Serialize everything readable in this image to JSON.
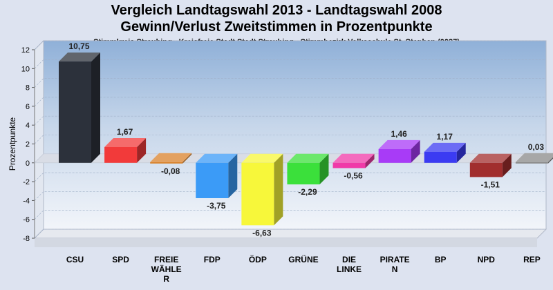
{
  "chart_data": {
    "type": "bar",
    "title": "Vergleich Landtagswahl 2013 - Landtagswahl 2008",
    "subtitle": "Gewinn/Verlust Zweitstimmen in Prozentpunkte",
    "subsubtitle": "Stimmkreis Straubing - Kreisfreie Stadt Stadt Straubing - Stimmbezirk Volksschule St. Stephan (0037)",
    "ylabel": "Prozentpunkte",
    "ylim": [
      -8,
      12
    ],
    "yticks": [
      "12",
      "10",
      "8",
      "6",
      "4",
      "2",
      "0",
      "-2",
      "-4",
      "-6",
      "-8"
    ],
    "grid": true,
    "categories": [
      "CSU",
      "SPD",
      "FREIE WÄHLER",
      "FDP",
      "ÖDP",
      "GRÜNE",
      "DIE LINKE",
      "PIRATEN",
      "BP",
      "NPD",
      "REP"
    ],
    "category_labels": [
      [
        "CSU"
      ],
      [
        "SPD"
      ],
      [
        "FREIE",
        "WÄHLE",
        "R"
      ],
      [
        "FDP"
      ],
      [
        "ÖDP"
      ],
      [
        "GRÜNE"
      ],
      [
        "DIE",
        "LINKE"
      ],
      [
        "PIRATE",
        "N"
      ],
      [
        "BP"
      ],
      [
        "NPD"
      ],
      [
        "REP"
      ]
    ],
    "values": [
      10.75,
      1.67,
      -0.08,
      -3.75,
      -6.63,
      -2.29,
      -0.56,
      1.46,
      1.17,
      -1.51,
      0.03
    ],
    "value_labels": [
      "10,75",
      "1,67",
      "-0,08",
      "-3,75",
      "-6,63",
      "-2,29",
      "-0,56",
      "1,46",
      "1,17",
      "-1,51",
      "0,03"
    ],
    "colors": [
      "#2c313b",
      "#f23a3a",
      "#d9822b",
      "#3b9bf7",
      "#f7f73a",
      "#3be03b",
      "#f03aa8",
      "#a83bf7",
      "#3b3bf2",
      "#a12e2e",
      "#8a8a8a"
    ]
  }
}
